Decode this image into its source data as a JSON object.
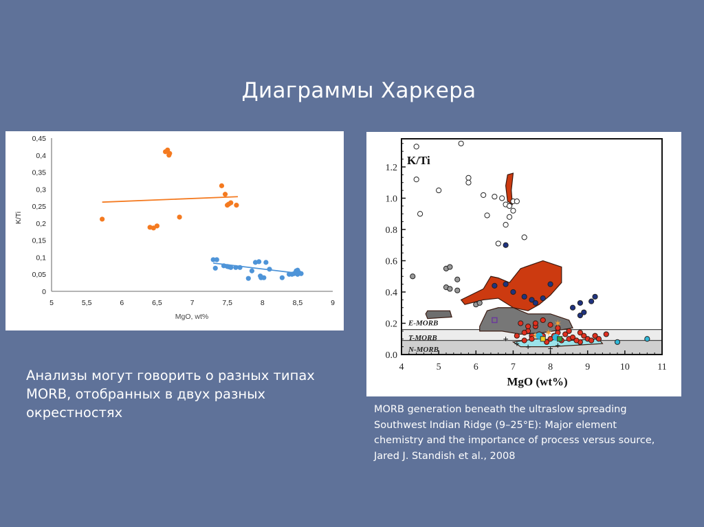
{
  "slide": {
    "title": "Диаграммы Харкера",
    "note_lines": [
      "Анализы могут говорить о разных типах",
      "MORB, отобранных в двух разных",
      "окрестностях"
    ],
    "caption_lines": [
      "MORB generation beneath the ultraslow spreading",
      "Southwest Indian Ridge (9–25°E): Major element",
      "chemistry and the importance of process versus source,",
      "Jared J. Standish et al., 2008"
    ],
    "colors": {
      "background": "#5f7299",
      "orange_series": "#f47a20",
      "blue_series": "#4e94d8"
    }
  },
  "chart_data": [
    {
      "type": "scatter",
      "title": "",
      "xlabel": "MgO, wt%",
      "ylabel": "K/Ti",
      "xlim": [
        5,
        9
      ],
      "ylim": [
        0,
        0.45
      ],
      "x_ticks": [
        "5",
        "5,5",
        "6",
        "6,5",
        "7",
        "7,5",
        "8",
        "8,5",
        "9"
      ],
      "y_ticks": [
        "0",
        "0,05",
        "0,1",
        "0,15",
        "0,2",
        "0,25",
        "0,3",
        "0,35",
        "0,4",
        "0,45"
      ],
      "grid": false,
      "legend": null,
      "series": [
        {
          "name": "orange",
          "color": "#f47a20",
          "points": [
            [
              5.72,
              0.212
            ],
            [
              6.4,
              0.188
            ],
            [
              6.45,
              0.186
            ],
            [
              6.5,
              0.192
            ],
            [
              6.62,
              0.41
            ],
            [
              6.65,
              0.415
            ],
            [
              6.68,
              0.405
            ],
            [
              6.67,
              0.4
            ],
            [
              6.82,
              0.218
            ],
            [
              7.42,
              0.31
            ],
            [
              7.47,
              0.285
            ],
            [
              7.5,
              0.253
            ],
            [
              7.55,
              0.26
            ],
            [
              7.52,
              0.256
            ],
            [
              7.63,
              0.253
            ]
          ],
          "trendline": [
            [
              5.72,
              0.262
            ],
            [
              7.65,
              0.278
            ]
          ]
        },
        {
          "name": "blue",
          "color": "#4e94d8",
          "points": [
            [
              7.3,
              0.093
            ],
            [
              7.35,
              0.093
            ],
            [
              7.33,
              0.068
            ],
            [
              7.45,
              0.075
            ],
            [
              7.5,
              0.073
            ],
            [
              7.52,
              0.072
            ],
            [
              7.55,
              0.07
            ],
            [
              7.62,
              0.07
            ],
            [
              7.68,
              0.07
            ],
            [
              7.8,
              0.038
            ],
            [
              7.85,
              0.06
            ],
            [
              7.9,
              0.085
            ],
            [
              7.95,
              0.087
            ],
            [
              7.97,
              0.045
            ],
            [
              7.98,
              0.04
            ],
            [
              8.02,
              0.04
            ],
            [
              8.05,
              0.085
            ],
            [
              8.1,
              0.065
            ],
            [
              8.28,
              0.04
            ],
            [
              8.38,
              0.05
            ],
            [
              8.42,
              0.05
            ],
            [
              8.45,
              0.052
            ],
            [
              8.48,
              0.06
            ],
            [
              8.5,
              0.062
            ],
            [
              8.52,
              0.055
            ],
            [
              8.55,
              0.052
            ],
            [
              8.5,
              0.05
            ]
          ],
          "trendline": [
            [
              7.3,
              0.083
            ],
            [
              8.55,
              0.052
            ]
          ]
        }
      ]
    },
    {
      "type": "scatter",
      "title": "",
      "xlabel": "MgO (wt%)",
      "ylabel": "K/Ti",
      "xlim": [
        4,
        11
      ],
      "ylim": [
        0,
        1.38
      ],
      "x_ticks": [
        "4",
        "5",
        "6",
        "7",
        "8",
        "9",
        "10",
        "11"
      ],
      "y_ticks": [
        "0.0",
        "0.2",
        "0.4",
        "0.6",
        "0.8",
        "1.0",
        "1.2"
      ],
      "grid": false,
      "annotations": [
        "E-MORB",
        "T-MORB",
        "N-MORB"
      ],
      "bands": [
        {
          "label": "N-MORB",
          "y_range": [
            0,
            0.09
          ]
        },
        {
          "label": "T-MORB",
          "y_range": [
            0.09,
            0.16
          ]
        },
        {
          "label": "E-MORB",
          "y_range": [
            0.16,
            1.38
          ]
        }
      ],
      "series": [
        {
          "name": "open circles (high K/Ti)",
          "color": "#ffffff",
          "points": [
            [
              4.4,
              1.33
            ],
            [
              4.4,
              1.12
            ],
            [
              4.5,
              0.9
            ],
            [
              5,
              1.05
            ],
            [
              5.6,
              1.35
            ],
            [
              5.8,
              1.13
            ],
            [
              5.8,
              1.1
            ],
            [
              6.2,
              1.02
            ],
            [
              6.3,
              0.89
            ],
            [
              6.5,
              1.01
            ],
            [
              6.7,
              1.0
            ],
            [
              6.8,
              0.96
            ],
            [
              6.9,
              0.95
            ],
            [
              7.0,
              0.98
            ],
            [
              7.0,
              0.92
            ],
            [
              7.1,
              0.98
            ],
            [
              6.8,
              0.83
            ],
            [
              6.9,
              0.88
            ],
            [
              6.6,
              0.71
            ],
            [
              7.3,
              0.75
            ]
          ]
        },
        {
          "name": "grey circles",
          "color": "#9a9a9a",
          "points": [
            [
              4.3,
              0.5
            ],
            [
              5.2,
              0.55
            ],
            [
              5.3,
              0.56
            ],
            [
              5.2,
              0.43
            ],
            [
              5.3,
              0.42
            ],
            [
              5.5,
              0.48
            ],
            [
              5.5,
              0.41
            ],
            [
              6.0,
              0.32
            ],
            [
              6.1,
              0.33
            ]
          ]
        },
        {
          "name": "dark blue circles",
          "color": "#1f3380",
          "points": [
            [
              6.8,
              0.7
            ],
            [
              6.5,
              0.44
            ],
            [
              6.8,
              0.45
            ],
            [
              7.0,
              0.4
            ],
            [
              7.3,
              0.37
            ],
            [
              7.5,
              0.35
            ],
            [
              7.6,
              0.33
            ],
            [
              7.8,
              0.36
            ],
            [
              8.0,
              0.45
            ],
            [
              8.6,
              0.3
            ],
            [
              8.8,
              0.33
            ],
            [
              9.1,
              0.34
            ],
            [
              9.2,
              0.37
            ],
            [
              8.9,
              0.27
            ],
            [
              8.8,
              0.25
            ]
          ]
        },
        {
          "name": "red circles",
          "color": "#e03020",
          "points": [
            [
              7.2,
              0.2
            ],
            [
              7.4,
              0.15
            ],
            [
              7.5,
              0.12
            ],
            [
              7.6,
              0.18
            ],
            [
              7.8,
              0.12
            ],
            [
              8.0,
              0.1
            ],
            [
              8.2,
              0.14
            ],
            [
              8.5,
              0.1
            ],
            [
              8.8,
              0.08
            ],
            [
              9.0,
              0.1
            ],
            [
              9.3,
              0.1
            ],
            [
              9.5,
              0.13
            ]
          ]
        },
        {
          "name": "cyan circles",
          "color": "#30b8d8",
          "points": [
            [
              9.8,
              0.08
            ],
            [
              10.6,
              0.1
            ]
          ]
        }
      ]
    }
  ]
}
